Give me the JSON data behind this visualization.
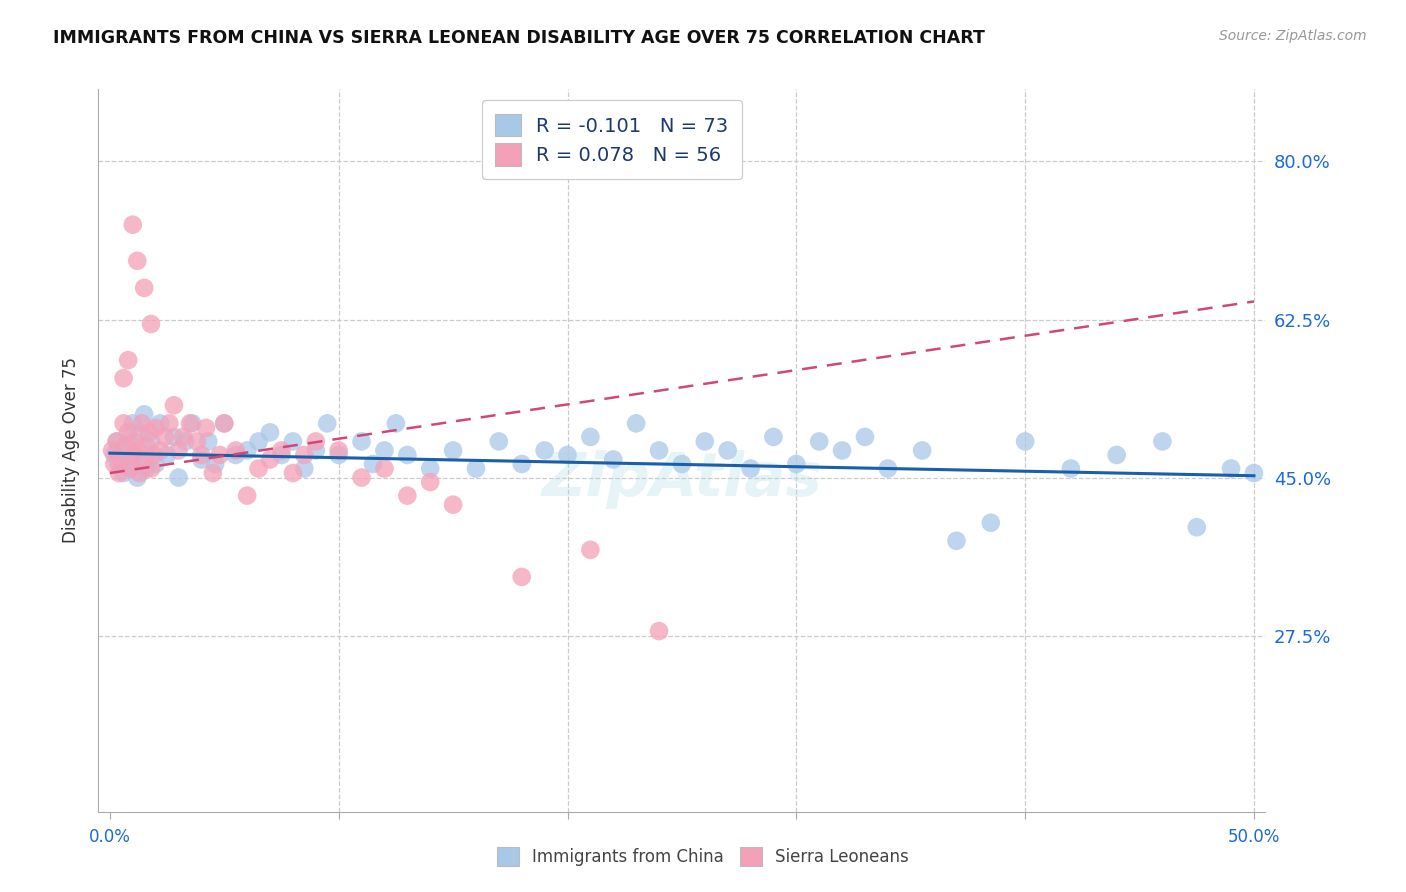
{
  "title": "IMMIGRANTS FROM CHINA VS SIERRA LEONEAN DISABILITY AGE OVER 75 CORRELATION CHART",
  "source": "Source: ZipAtlas.com",
  "ylabel": "Disability Age Over 75",
  "ytick_labels": [
    "80.0%",
    "62.5%",
    "45.0%",
    "27.5%"
  ],
  "ytick_values": [
    0.8,
    0.625,
    0.45,
    0.275
  ],
  "xlim": [
    0.0,
    0.5
  ],
  "ylim": [
    0.08,
    0.88
  ],
  "legend_label1": "R = -0.101   N = 73",
  "legend_label2": "R = 0.078   N = 56",
  "scatter_color1": "#a8c8e8",
  "scatter_color2": "#f4a0b8",
  "line_color1": "#1a5fa8",
  "line_color2": "#d04878",
  "bottom_legend1": "Immigrants from China",
  "bottom_legend2": "Sierra Leoneans",
  "china_line_y0": 0.477,
  "china_line_y1": 0.452,
  "sierra_line_y0": 0.455,
  "sierra_line_y1": 0.645,
  "watermark": "ZipAtlas",
  "china_x": [
    0.002,
    0.003,
    0.004,
    0.005,
    0.006,
    0.007,
    0.008,
    0.009,
    0.01,
    0.011,
    0.012,
    0.013,
    0.014,
    0.015,
    0.016,
    0.018,
    0.02,
    0.022,
    0.025,
    0.028,
    0.03,
    0.033,
    0.036,
    0.04,
    0.043,
    0.046,
    0.05,
    0.055,
    0.06,
    0.065,
    0.07,
    0.075,
    0.08,
    0.085,
    0.09,
    0.095,
    0.1,
    0.11,
    0.115,
    0.12,
    0.125,
    0.13,
    0.14,
    0.15,
    0.16,
    0.17,
    0.18,
    0.19,
    0.2,
    0.21,
    0.22,
    0.23,
    0.24,
    0.25,
    0.26,
    0.27,
    0.28,
    0.29,
    0.3,
    0.31,
    0.32,
    0.33,
    0.34,
    0.355,
    0.37,
    0.385,
    0.4,
    0.42,
    0.44,
    0.46,
    0.475,
    0.49,
    0.5
  ],
  "china_y": [
    0.475,
    0.49,
    0.465,
    0.48,
    0.455,
    0.47,
    0.49,
    0.46,
    0.51,
    0.475,
    0.45,
    0.5,
    0.465,
    0.52,
    0.46,
    0.49,
    0.465,
    0.51,
    0.475,
    0.495,
    0.45,
    0.49,
    0.51,
    0.47,
    0.49,
    0.465,
    0.51,
    0.475,
    0.48,
    0.49,
    0.5,
    0.475,
    0.49,
    0.46,
    0.48,
    0.51,
    0.475,
    0.49,
    0.465,
    0.48,
    0.51,
    0.475,
    0.46,
    0.48,
    0.46,
    0.49,
    0.465,
    0.48,
    0.475,
    0.495,
    0.47,
    0.51,
    0.48,
    0.465,
    0.49,
    0.48,
    0.46,
    0.495,
    0.465,
    0.49,
    0.48,
    0.495,
    0.46,
    0.48,
    0.38,
    0.4,
    0.49,
    0.46,
    0.475,
    0.49,
    0.395,
    0.46,
    0.455
  ],
  "sierra_x": [
    0.001,
    0.002,
    0.003,
    0.004,
    0.005,
    0.006,
    0.007,
    0.008,
    0.009,
    0.01,
    0.011,
    0.012,
    0.013,
    0.014,
    0.015,
    0.016,
    0.017,
    0.018,
    0.019,
    0.02,
    0.022,
    0.024,
    0.026,
    0.028,
    0.03,
    0.032,
    0.035,
    0.038,
    0.04,
    0.042,
    0.045,
    0.048,
    0.05,
    0.055,
    0.06,
    0.065,
    0.07,
    0.075,
    0.08,
    0.085,
    0.09,
    0.1,
    0.11,
    0.12,
    0.13,
    0.14,
    0.15,
    0.18,
    0.21,
    0.24,
    0.01,
    0.012,
    0.015,
    0.018,
    0.008,
    0.006
  ],
  "sierra_y": [
    0.48,
    0.465,
    0.49,
    0.455,
    0.47,
    0.51,
    0.485,
    0.5,
    0.46,
    0.475,
    0.49,
    0.48,
    0.455,
    0.51,
    0.47,
    0.485,
    0.5,
    0.46,
    0.475,
    0.505,
    0.48,
    0.495,
    0.51,
    0.53,
    0.48,
    0.495,
    0.51,
    0.49,
    0.475,
    0.505,
    0.455,
    0.475,
    0.51,
    0.48,
    0.43,
    0.46,
    0.47,
    0.48,
    0.455,
    0.475,
    0.49,
    0.48,
    0.45,
    0.46,
    0.43,
    0.445,
    0.42,
    0.34,
    0.37,
    0.28,
    0.73,
    0.69,
    0.66,
    0.62,
    0.58,
    0.56
  ]
}
